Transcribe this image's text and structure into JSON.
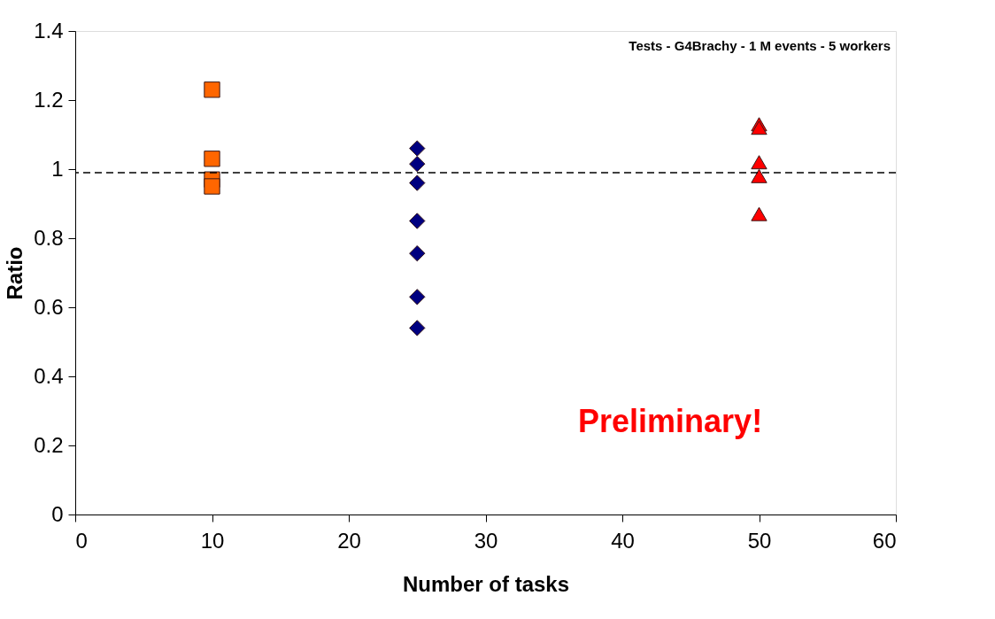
{
  "chart_data": {
    "type": "scatter",
    "title": "Tests - G4Brachy - 1 M events - 5 workers",
    "xlabel": "Number of tasks",
    "ylabel": "Ratio",
    "xlim": [
      0,
      60
    ],
    "xticks": [
      0,
      10,
      20,
      30,
      40,
      50,
      60
    ],
    "ylim": [
      0,
      1.4
    ],
    "yticks": [
      0,
      0.2,
      0.4,
      0.6,
      0.8,
      1,
      1.2,
      1.4
    ],
    "grid": false,
    "series": [
      {
        "color": "#ff6600",
        "marker": "square",
        "x": [
          10,
          10,
          10,
          10
        ],
        "values": [
          1.23,
          1.03,
          0.97,
          0.95
        ]
      },
      {
        "color": "#000080",
        "marker": "diamond",
        "x": [
          25,
          25,
          25,
          25,
          25,
          25,
          25
        ],
        "values": [
          1.06,
          1.015,
          0.96,
          0.85,
          0.756,
          0.63,
          0.54
        ]
      },
      {
        "color": "#ff0000",
        "marker": "triangle",
        "x": [
          50,
          50,
          50,
          50,
          50
        ],
        "values": [
          1.13,
          1.12,
          1.02,
          0.98,
          0.87
        ]
      }
    ],
    "ref_lines": [
      {
        "axis": "y",
        "value": 0.99,
        "color": "#000000",
        "line_style": "dashed"
      }
    ],
    "annotations": [
      "Preliminary!"
    ]
  }
}
